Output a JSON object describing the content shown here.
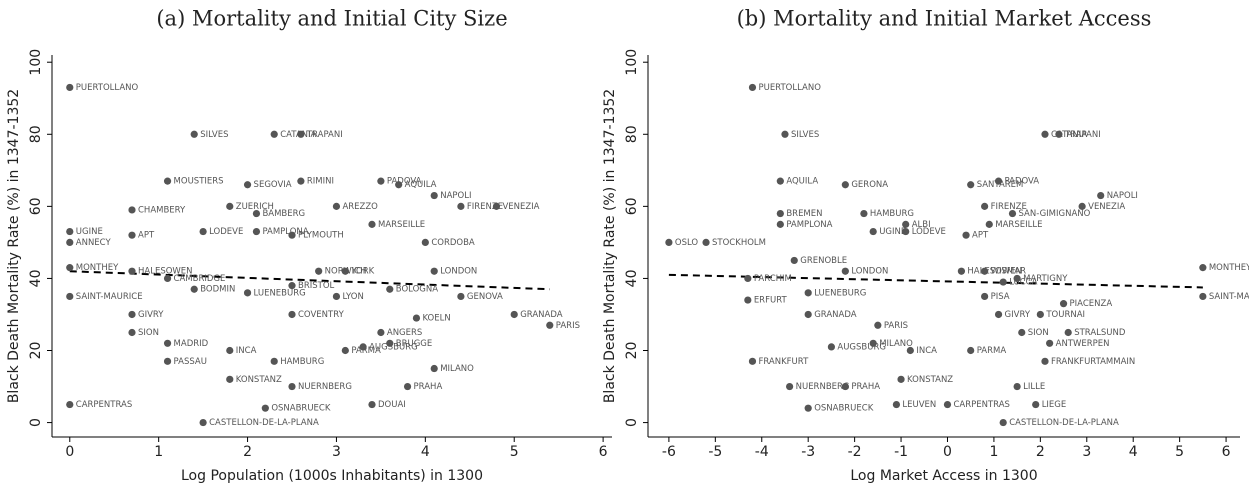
{
  "chart_data": [
    {
      "type": "scatter",
      "title": "(a)  Mortality and Initial City Size",
      "x_label": "Log Population (1000s Inhabitants) in 1300",
      "y_label": "Black Death Mortality Rate (%) in 1347-1352",
      "xlim": [
        -0.2,
        6.1
      ],
      "ylim": [
        -4,
        102
      ],
      "xticks": [
        0,
        1,
        2,
        3,
        4,
        5,
        6
      ],
      "yticks": [
        0,
        20,
        40,
        60,
        80,
        100
      ],
      "color": "#555555",
      "fit": {
        "x": [
          0,
          5.4
        ],
        "y": [
          42,
          37
        ]
      },
      "points": [
        {
          "label": "PUERTOLLANO",
          "x": 0,
          "y": 93
        },
        {
          "label": "SILVES",
          "x": 1.4,
          "y": 80
        },
        {
          "label": "CATANIA",
          "x": 2.3,
          "y": 80
        },
        {
          "label": "TRAPANI",
          "x": 2.6,
          "y": 80
        },
        {
          "label": "MOUSTIERS",
          "x": 1.1,
          "y": 67
        },
        {
          "label": "SEGOVIA",
          "x": 2.0,
          "y": 66
        },
        {
          "label": "RIMINI",
          "x": 2.6,
          "y": 67
        },
        {
          "label": "PADOVA",
          "x": 3.5,
          "y": 67
        },
        {
          "label": "AQUILA",
          "x": 3.7,
          "y": 66
        },
        {
          "label": "NAPOLI",
          "x": 4.1,
          "y": 63
        },
        {
          "label": "FIRENZE",
          "x": 4.4,
          "y": 60
        },
        {
          "label": "VENEZIA",
          "x": 4.8,
          "y": 60
        },
        {
          "label": "CHAMBERY",
          "x": 0.7,
          "y": 59
        },
        {
          "label": "ZUERICH",
          "x": 1.8,
          "y": 60
        },
        {
          "label": "AREZZO",
          "x": 3.0,
          "y": 60
        },
        {
          "label": "BAMBERG",
          "x": 2.1,
          "y": 58
        },
        {
          "label": "MARSEILLE",
          "x": 3.4,
          "y": 55
        },
        {
          "label": "PAMPLONA",
          "x": 2.1,
          "y": 53
        },
        {
          "label": "UGINE",
          "x": 0,
          "y": 53
        },
        {
          "label": "APT",
          "x": 0.7,
          "y": 52
        },
        {
          "label": "LODEVE",
          "x": 1.5,
          "y": 53
        },
        {
          "label": "PLYMOUTH",
          "x": 2.5,
          "y": 52
        },
        {
          "label": "ANNECY",
          "x": 0,
          "y": 50
        },
        {
          "label": "CORDOBA",
          "x": 4.0,
          "y": 50
        },
        {
          "label": "MONTHEY",
          "x": 0,
          "y": 43
        },
        {
          "label": "HALESOWEN",
          "x": 0.7,
          "y": 42
        },
        {
          "label": "LONDON",
          "x": 4.1,
          "y": 42
        },
        {
          "label": "YORK",
          "x": 3.1,
          "y": 42
        },
        {
          "label": "NORWICH",
          "x": 2.8,
          "y": 42
        },
        {
          "label": "CAMBRIDGE",
          "x": 1.1,
          "y": 40
        },
        {
          "label": "BRISTOL",
          "x": 2.5,
          "y": 38
        },
        {
          "label": "BOLOGNA",
          "x": 3.6,
          "y": 37
        },
        {
          "label": "SAINT-MAURICE",
          "x": 0,
          "y": 35
        },
        {
          "label": "GENOVA",
          "x": 4.4,
          "y": 35
        },
        {
          "label": "LYON",
          "x": 3.0,
          "y": 35
        },
        {
          "label": "BODMIN",
          "x": 1.4,
          "y": 37
        },
        {
          "label": "LUENEBURG",
          "x": 2.0,
          "y": 36
        },
        {
          "label": "GIVRY",
          "x": 0.7,
          "y": 30
        },
        {
          "label": "COVENTRY",
          "x": 2.5,
          "y": 30
        },
        {
          "label": "KOELN",
          "x": 3.9,
          "y": 29
        },
        {
          "label": "GRANADA",
          "x": 5.0,
          "y": 30
        },
        {
          "label": "PARIS",
          "x": 5.4,
          "y": 27
        },
        {
          "label": "SION",
          "x": 0.7,
          "y": 25
        },
        {
          "label": "ANGERS",
          "x": 3.5,
          "y": 25
        },
        {
          "label": "MADRID",
          "x": 1.1,
          "y": 22
        },
        {
          "label": "INCA",
          "x": 1.8,
          "y": 20
        },
        {
          "label": "PARMA",
          "x": 3.1,
          "y": 20
        },
        {
          "label": "BRUGGE",
          "x": 3.6,
          "y": 22
        },
        {
          "label": "AUGSBURG",
          "x": 3.3,
          "y": 21
        },
        {
          "label": "PASSAU",
          "x": 1.1,
          "y": 17
        },
        {
          "label": "HAMBURG",
          "x": 2.3,
          "y": 17
        },
        {
          "label": "KONSTANZ",
          "x": 1.8,
          "y": 12
        },
        {
          "label": "MILANO",
          "x": 4.1,
          "y": 15
        },
        {
          "label": "NUERNBERG",
          "x": 2.5,
          "y": 10
        },
        {
          "label": "PRAHA",
          "x": 3.8,
          "y": 10
        },
        {
          "label": "CARPENTRAS",
          "x": 0,
          "y": 5
        },
        {
          "label": "OSNABRUECK",
          "x": 2.2,
          "y": 4
        },
        {
          "label": "DOUAI",
          "x": 3.4,
          "y": 5
        },
        {
          "label": "CASTELLON-DE-LA-PLANA",
          "x": 1.5,
          "y": 0
        }
      ]
    },
    {
      "type": "scatter",
      "title": "(b)  Mortality and Initial Market Access",
      "x_label": "Log Market Access in 1300",
      "y_label": "Black Death Mortality Rate (%) in 1347-1352",
      "xlim": [
        -6.45,
        6.3
      ],
      "ylim": [
        -4,
        102
      ],
      "xticks": [
        -6,
        -5,
        -4,
        -3,
        -2,
        -1,
        0,
        1,
        2,
        3,
        4,
        5,
        6
      ],
      "yticks": [
        0,
        20,
        40,
        60,
        80,
        100
      ],
      "color": "#555555",
      "fit": {
        "x": [
          -6,
          5.5
        ],
        "y": [
          41,
          37.5
        ]
      },
      "points": [
        {
          "label": "PUERTOLLANO",
          "x": -4.2,
          "y": 93
        },
        {
          "label": "SILVES",
          "x": -3.5,
          "y": 80
        },
        {
          "label": "CATANIA",
          "x": 2.1,
          "y": 80
        },
        {
          "label": "TRAPANI",
          "x": 2.4,
          "y": 80
        },
        {
          "label": "AQUILA",
          "x": -3.6,
          "y": 67
        },
        {
          "label": "GERONA",
          "x": -2.2,
          "y": 66
        },
        {
          "label": "PADOVA",
          "x": 1.1,
          "y": 67
        },
        {
          "label": "SANTAREM",
          "x": 0.5,
          "y": 66
        },
        {
          "label": "NAPOLI",
          "x": 3.3,
          "y": 63
        },
        {
          "label": "BREMEN",
          "x": -3.6,
          "y": 58
        },
        {
          "label": "HAMBURG",
          "x": -1.8,
          "y": 58
        },
        {
          "label": "FIRENZE",
          "x": 0.8,
          "y": 60
        },
        {
          "label": "VENEZIA",
          "x": 2.9,
          "y": 60
        },
        {
          "label": "SAN-GIMIGNANO",
          "x": 1.4,
          "y": 58
        },
        {
          "label": "PAMPLONA",
          "x": -3.6,
          "y": 55
        },
        {
          "label": "ALBI",
          "x": -0.9,
          "y": 55
        },
        {
          "label": "MARSEILLE",
          "x": 0.9,
          "y": 55
        },
        {
          "label": "UGINE",
          "x": -1.6,
          "y": 53
        },
        {
          "label": "LODEVE",
          "x": -0.9,
          "y": 53
        },
        {
          "label": "APT",
          "x": 0.4,
          "y": 52
        },
        {
          "label": "OSLO",
          "x": -6,
          "y": 50
        },
        {
          "label": "STOCKHOLM",
          "x": -5.2,
          "y": 50
        },
        {
          "label": "GRENOBLE",
          "x": -3.3,
          "y": 45
        },
        {
          "label": "LONDON",
          "x": -2.2,
          "y": 42
        },
        {
          "label": "HALESOWEN",
          "x": 0.3,
          "y": 42
        },
        {
          "label": "WISMAR",
          "x": 0.8,
          "y": 42
        },
        {
          "label": "MARTIGNY",
          "x": 1.5,
          "y": 40
        },
        {
          "label": "PARCHIM",
          "x": -4.3,
          "y": 40
        },
        {
          "label": "LUCCA",
          "x": 1.2,
          "y": 39
        },
        {
          "label": "MONTHEY",
          "x": 5.5,
          "y": 43
        },
        {
          "label": "SAINT-MAURICE",
          "x": 5.5,
          "y": 35
        },
        {
          "label": "LUENEBURG",
          "x": -3.0,
          "y": 36
        },
        {
          "label": "ERFURT",
          "x": -4.3,
          "y": 34
        },
        {
          "label": "PISA",
          "x": 0.8,
          "y": 35
        },
        {
          "label": "PIACENZA",
          "x": 2.5,
          "y": 33
        },
        {
          "label": "GRANADA",
          "x": -3.0,
          "y": 30
        },
        {
          "label": "GIVRY",
          "x": 1.1,
          "y": 30
        },
        {
          "label": "TOURNAI",
          "x": 2.0,
          "y": 30
        },
        {
          "label": "PARIS",
          "x": -1.5,
          "y": 27
        },
        {
          "label": "SION",
          "x": 1.6,
          "y": 25
        },
        {
          "label": "STRALSUND",
          "x": 2.6,
          "y": 25
        },
        {
          "label": "MILANO",
          "x": -1.6,
          "y": 22
        },
        {
          "label": "ANTWERPEN",
          "x": 2.2,
          "y": 22
        },
        {
          "label": "INCA",
          "x": -0.8,
          "y": 20
        },
        {
          "label": "PARMA",
          "x": 0.5,
          "y": 20
        },
        {
          "label": "AUGSBURG",
          "x": -2.5,
          "y": 21
        },
        {
          "label": "FRANKFURTAMMAIN",
          "x": 2.1,
          "y": 17
        },
        {
          "label": "FRANKFURT",
          "x": -4.2,
          "y": 17
        },
        {
          "label": "NUERNBERG",
          "x": -3.4,
          "y": 10
        },
        {
          "label": "PRAHA",
          "x": -2.2,
          "y": 10
        },
        {
          "label": "KONSTANZ",
          "x": -1.0,
          "y": 12
        },
        {
          "label": "LILLE",
          "x": 1.5,
          "y": 10
        },
        {
          "label": "OSNABRUECK",
          "x": -3.0,
          "y": 4
        },
        {
          "label": "LEUVEN",
          "x": -1.1,
          "y": 5
        },
        {
          "label": "CARPENTRAS",
          "x": 0,
          "y": 5
        },
        {
          "label": "LIEGE",
          "x": 1.9,
          "y": 5
        },
        {
          "label": "CASTELLON-DE-LA-PLANA",
          "x": 1.2,
          "y": 0
        }
      ]
    }
  ]
}
